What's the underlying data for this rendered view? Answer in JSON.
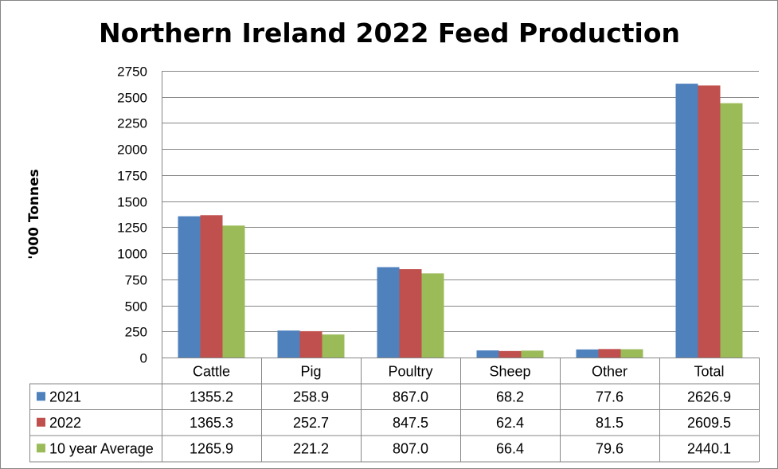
{
  "chart_data": {
    "type": "bar",
    "title": "Northern Ireland 2022 Feed Production",
    "xlabel": "",
    "ylabel": "'000 Tonnes",
    "ylim": [
      0,
      2750
    ],
    "yticks": [
      0,
      250,
      500,
      750,
      1000,
      1250,
      1500,
      1750,
      2000,
      2250,
      2500,
      2750
    ],
    "grid": "horizontal",
    "legend_placement": "data-table",
    "categories": [
      "Cattle",
      "Pig",
      "Poultry",
      "Sheep",
      "Other",
      "Total"
    ],
    "series": [
      {
        "name": "2021",
        "color": "#4F81BD",
        "values": [
          1355.2,
          258.9,
          867.0,
          68.2,
          77.6,
          2626.9
        ],
        "labels": [
          "1355.2",
          "258.9",
          "867.0",
          "68.2",
          "77.6",
          "2626.9"
        ]
      },
      {
        "name": "2022",
        "color": "#C0504D",
        "values": [
          1365.3,
          252.7,
          847.5,
          62.4,
          81.5,
          2609.5
        ],
        "labels": [
          "1365.3",
          "252.7",
          "847.5",
          "62.4",
          "81.5",
          "2609.5"
        ]
      },
      {
        "name": "10 year Average",
        "color": "#9BBB59",
        "values": [
          1265.9,
          221.2,
          807.0,
          66.4,
          79.6,
          2440.1
        ],
        "labels": [
          "1265.9",
          "221.2",
          "807.0",
          "66.4",
          "79.6",
          "2440.1"
        ]
      }
    ]
  }
}
